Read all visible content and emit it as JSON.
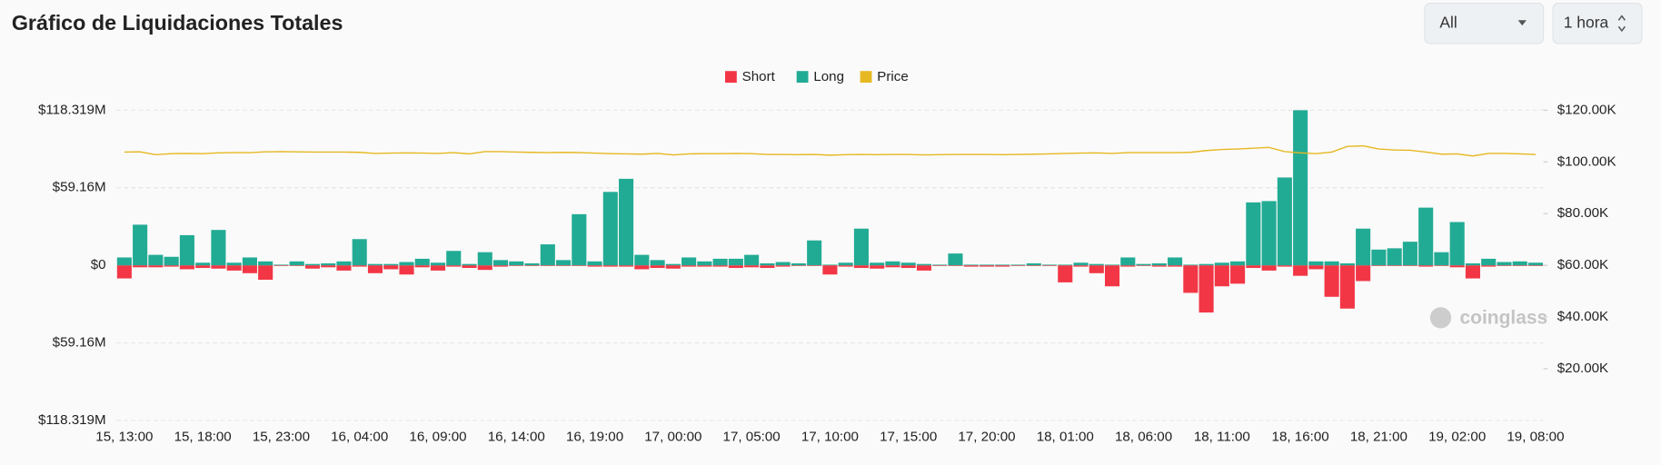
{
  "header": {
    "title": "Gráfico de Liquidaciones Totales"
  },
  "controls": {
    "period": "All",
    "interval": "1 hora"
  },
  "watermark": "coinglass",
  "chart_data": {
    "type": "bar",
    "categories": [
      "15, 13:00",
      null,
      null,
      null,
      null,
      "15, 18:00",
      null,
      null,
      null,
      null,
      "15, 23:00",
      null,
      null,
      null,
      null,
      "16, 04:00",
      null,
      null,
      null,
      null,
      "16, 09:00",
      null,
      null,
      null,
      null,
      "16, 14:00",
      null,
      null,
      null,
      null,
      "16, 19:00",
      null,
      null,
      null,
      null,
      "17, 00:00",
      null,
      null,
      null,
      null,
      "17, 05:00",
      null,
      null,
      null,
      null,
      "17, 10:00",
      null,
      null,
      null,
      null,
      "17, 15:00",
      null,
      null,
      null,
      null,
      "17, 20:00",
      null,
      null,
      null,
      null,
      "18, 01:00",
      null,
      null,
      null,
      null,
      "18, 06:00",
      null,
      null,
      null,
      null,
      "18, 11:00",
      null,
      null,
      null,
      null,
      "18, 16:00",
      null,
      null,
      null,
      null,
      "18, 21:00",
      null,
      null,
      null,
      null,
      "19, 02:00",
      null,
      null,
      null,
      null,
      "19, 08:00"
    ],
    "series": [
      {
        "name": "Short",
        "type": "bar",
        "color": "#f23645",
        "values": [
          -10,
          -1.5,
          -1.5,
          -1,
          -3,
          -2,
          -2.5,
          -4,
          -6,
          -11,
          -0.5,
          -0.5,
          -2.5,
          -1.5,
          -4,
          -1,
          -6,
          -3,
          -7,
          -1.5,
          -4,
          -1,
          -2,
          -3.5,
          -1,
          -0.5,
          -0.5,
          -0.5,
          -0.5,
          -0.5,
          -1,
          -1,
          -1,
          -3,
          -2,
          -2.5,
          -1,
          -1,
          -1,
          -2,
          -1.5,
          -2,
          -1,
          -0.5,
          -0.5,
          -7,
          -1,
          -2,
          -2.5,
          -1.5,
          -2,
          -4,
          -0.5,
          -0.5,
          -1,
          -1,
          -1,
          -0.5,
          -0.5,
          -0.5,
          -13,
          -1,
          -6,
          -16,
          -1,
          -0.5,
          -1,
          -1,
          -21,
          -36,
          -16,
          -14,
          -2,
          -4,
          -1,
          -8,
          -3,
          -24,
          -33,
          -12,
          -0.5,
          -0.5,
          -0.5,
          -1,
          -0.5,
          -1.5,
          -10,
          -1,
          -0.5,
          -0.5,
          -0.5
        ]
      },
      {
        "name": "Long",
        "type": "bar",
        "color": "#22ab94",
        "values": [
          6,
          31,
          8,
          6.5,
          23,
          2,
          27,
          2,
          6,
          3,
          0.5,
          3,
          1,
          1.5,
          3,
          20,
          1,
          1,
          2.5,
          5,
          2,
          11,
          1,
          10,
          4,
          3,
          1.5,
          16,
          4,
          39,
          3,
          56,
          66,
          8,
          4,
          1,
          6,
          3,
          5,
          5,
          8,
          1.5,
          2.5,
          1.5,
          19,
          0.5,
          2,
          28,
          2,
          3,
          2,
          1,
          0.5,
          9,
          0.5,
          0.5,
          0.5,
          0.5,
          1.5,
          0.5,
          0.5,
          2,
          1,
          0.5,
          6,
          1,
          1.5,
          6,
          0.5,
          1,
          2,
          3,
          48,
          49,
          67,
          118.3,
          3,
          3,
          1.5,
          28,
          12,
          13,
          18,
          44,
          10,
          33,
          1.5,
          5,
          2.5,
          3,
          2
        ]
      },
      {
        "name": "Price",
        "type": "line",
        "axis": "y2",
        "color": "#e6b821",
        "values": [
          103800,
          103900,
          102800,
          103200,
          103300,
          103200,
          103500,
          103600,
          103600,
          103900,
          104000,
          103900,
          103800,
          103800,
          103800,
          103700,
          103300,
          103400,
          103500,
          103400,
          103300,
          103600,
          103100,
          104000,
          104000,
          103800,
          103700,
          103600,
          103700,
          103600,
          103400,
          103200,
          103100,
          103000,
          103300,
          102700,
          103100,
          103200,
          103200,
          103300,
          103200,
          102900,
          102900,
          102800,
          102900,
          102600,
          102800,
          102900,
          102800,
          102900,
          102900,
          102700,
          102800,
          102900,
          102900,
          102900,
          102800,
          102900,
          103000,
          103100,
          103300,
          103400,
          103500,
          103300,
          103600,
          103600,
          103600,
          103600,
          103700,
          104400,
          104800,
          105000,
          105300,
          105600,
          104000,
          103500,
          103200,
          103800,
          106000,
          106200,
          105000,
          104600,
          104500,
          103800,
          103000,
          103100,
          102300,
          103300,
          103300,
          103100,
          102900
        ]
      }
    ],
    "ylim": [
      -118.319,
      118.319
    ],
    "yticks": [
      {
        "value": -118.319,
        "label": "$118.319M"
      },
      {
        "value": -59.16,
        "label": "$59.16M"
      },
      {
        "value": 0,
        "label": "$0"
      },
      {
        "value": 59.16,
        "label": "$59.16M"
      },
      {
        "value": 118.319,
        "label": "$118.319M"
      }
    ],
    "y2lim": [
      0,
      120000
    ],
    "y2ticks": [
      {
        "value": 20000,
        "label": "$20.00K"
      },
      {
        "value": 40000,
        "label": "$40.00K"
      },
      {
        "value": 60000,
        "label": "$60.00K"
      },
      {
        "value": 80000,
        "label": "$80.00K"
      },
      {
        "value": 100000,
        "label": "$100.00K"
      },
      {
        "value": 120000,
        "label": "$120.00K"
      }
    ],
    "grid": true,
    "legend": "top"
  }
}
